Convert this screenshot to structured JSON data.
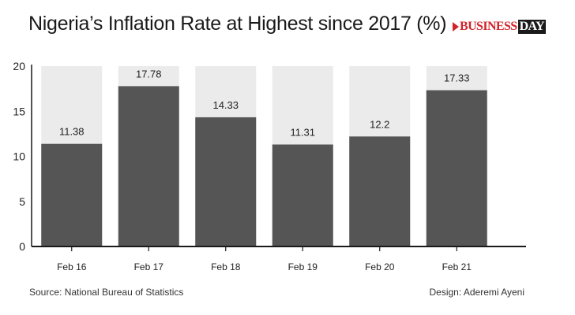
{
  "header": {
    "title": "Nigeria’s Inflation Rate at Highest since 2017 (%)",
    "logo_text_a": "BUSINESS",
    "logo_text_b": "DAY"
  },
  "footer": {
    "source": "Source: National Bureau of Statistics",
    "credit": "Design: Aderemi Ayeni"
  },
  "colors": {
    "bar": "#555556",
    "background_band": "#ebebeb",
    "axis": "#1a1a1a",
    "logo_red": "#d0242a"
  },
  "chart_data": {
    "type": "bar",
    "title": "Nigeria’s Inflation Rate at Highest since 2017 (%)",
    "xlabel": "",
    "ylabel": "",
    "categories": [
      "Feb 16",
      "Feb 17",
      "Feb 18",
      "Feb 19",
      "Feb 20",
      "Feb 21"
    ],
    "values": [
      11.38,
      17.78,
      14.33,
      11.31,
      12.2,
      17.33
    ],
    "value_labels": [
      "11.38",
      "17.78",
      "14.33",
      "11.31",
      "12.2",
      "17.33"
    ],
    "ylim": [
      0,
      20
    ],
    "yticks": [
      0,
      5,
      10,
      15,
      20
    ],
    "grid": false,
    "legend": "none"
  }
}
